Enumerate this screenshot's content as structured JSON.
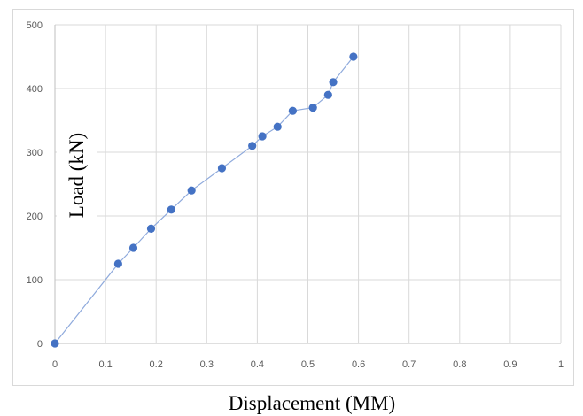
{
  "chart_data": {
    "type": "scatter",
    "title": "",
    "xlabel": "Displacement (MM)",
    "ylabel": "Load (kN)",
    "xlim": [
      0,
      1
    ],
    "ylim": [
      0,
      500
    ],
    "xticks": [
      "0",
      "0.1",
      "0.2",
      "0.3",
      "0.4",
      "0.5",
      "0.6",
      "0.7",
      "0.8",
      "0.9",
      "1"
    ],
    "yticks": [
      "0",
      "100",
      "200",
      "300",
      "400",
      "500"
    ],
    "grid": true,
    "legend": "none",
    "series": [
      {
        "color": "#4472c4",
        "line_color": "#8faadc",
        "points": [
          {
            "x": 0.0,
            "y": 0
          },
          {
            "x": 0.125,
            "y": 125
          },
          {
            "x": 0.155,
            "y": 150
          },
          {
            "x": 0.19,
            "y": 180
          },
          {
            "x": 0.23,
            "y": 210
          },
          {
            "x": 0.27,
            "y": 240
          },
          {
            "x": 0.33,
            "y": 275
          },
          {
            "x": 0.39,
            "y": 310
          },
          {
            "x": 0.41,
            "y": 325
          },
          {
            "x": 0.44,
            "y": 340
          },
          {
            "x": 0.47,
            "y": 365
          },
          {
            "x": 0.51,
            "y": 370
          },
          {
            "x": 0.54,
            "y": 390
          },
          {
            "x": 0.55,
            "y": 410
          },
          {
            "x": 0.59,
            "y": 450
          }
        ]
      }
    ]
  }
}
